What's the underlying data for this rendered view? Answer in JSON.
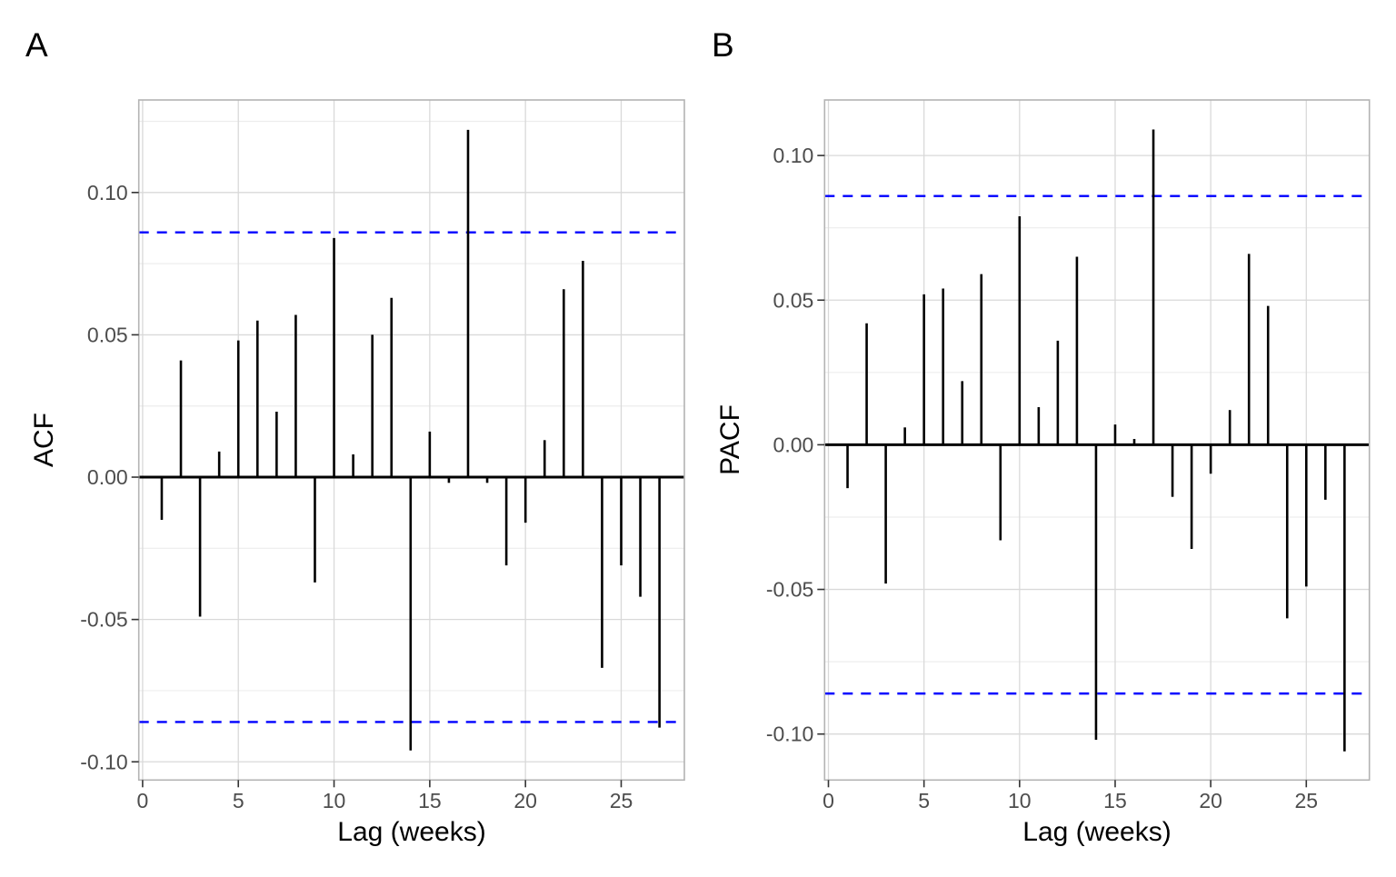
{
  "figure": {
    "background": "#ffffff",
    "colors": {
      "bar": "#000000",
      "zero_line": "#000000",
      "confidence_line": "#0000ff",
      "grid_major": "#d9d9d9",
      "grid_minor": "#ededed",
      "panel_border": "#b3b3b3",
      "tick_mark": "#333333",
      "tick_label": "#4d4d4d"
    }
  },
  "chart_data": [
    {
      "type": "bar",
      "panel": "A",
      "title": "A",
      "xlabel": "Lag (weeks)",
      "ylabel": "ACF",
      "legend": "none",
      "grid": "major-xy plus minor-y",
      "confidence_bounds": [
        -0.086,
        0.086
      ],
      "confidence_style": "blue dashed horizontal lines",
      "lags": [
        1,
        2,
        3,
        4,
        5,
        6,
        7,
        8,
        9,
        10,
        11,
        12,
        13,
        14,
        15,
        16,
        17,
        18,
        19,
        20,
        21,
        22,
        23,
        24,
        25,
        26,
        27
      ],
      "values": [
        -0.015,
        0.041,
        -0.049,
        0.009,
        0.048,
        0.055,
        0.023,
        0.057,
        -0.037,
        0.084,
        0.008,
        0.05,
        0.063,
        -0.096,
        0.016,
        -0.002,
        0.122,
        -0.002,
        -0.031,
        -0.016,
        0.013,
        0.066,
        0.076,
        -0.067,
        -0.031,
        -0.042,
        -0.088
      ],
      "xlim": [
        -0.2,
        28.3
      ],
      "ylim": [
        -0.1064,
        0.1325
      ],
      "xticks": [
        0,
        5,
        10,
        15,
        20,
        25
      ],
      "xtick_labels": [
        "0",
        "5",
        "10",
        "15",
        "20",
        "25"
      ],
      "yticks": [
        0.1,
        0.05,
        0.0,
        -0.05,
        -0.1
      ],
      "ytick_labels": [
        "0.10",
        "0.05",
        "0.00",
        "-0.05",
        "-0.10"
      ],
      "yminor": [
        0.125,
        0.075,
        0.025,
        -0.025,
        -0.075
      ]
    },
    {
      "type": "bar",
      "panel": "B",
      "title": "B",
      "xlabel": "Lag (weeks)",
      "ylabel": "PACF",
      "legend": "none",
      "grid": "major-xy plus minor-y",
      "confidence_bounds": [
        -0.086,
        0.086
      ],
      "confidence_style": "blue dashed horizontal lines",
      "lags": [
        1,
        2,
        3,
        4,
        5,
        6,
        7,
        8,
        9,
        10,
        11,
        12,
        13,
        14,
        15,
        16,
        17,
        18,
        19,
        20,
        21,
        22,
        23,
        24,
        25,
        26,
        27
      ],
      "values": [
        -0.015,
        0.042,
        -0.048,
        0.006,
        0.052,
        0.054,
        0.022,
        0.059,
        -0.033,
        0.079,
        0.013,
        0.036,
        0.065,
        -0.102,
        0.007,
        0.002,
        0.109,
        -0.018,
        -0.036,
        -0.01,
        0.012,
        0.066,
        0.048,
        -0.06,
        -0.049,
        -0.019,
        -0.106
      ],
      "xlim": [
        -0.2,
        28.3
      ],
      "ylim": [
        -0.1159,
        0.1192
      ],
      "xticks": [
        0,
        5,
        10,
        15,
        20,
        25
      ],
      "xtick_labels": [
        "0",
        "5",
        "10",
        "15",
        "20",
        "25"
      ],
      "yticks": [
        0.1,
        0.05,
        0.0,
        -0.05,
        -0.1
      ],
      "ytick_labels": [
        "0.10",
        "0.05",
        "0.00",
        "-0.05",
        "-0.10"
      ],
      "yminor": [
        0.075,
        0.025,
        -0.025,
        -0.075
      ]
    }
  ]
}
